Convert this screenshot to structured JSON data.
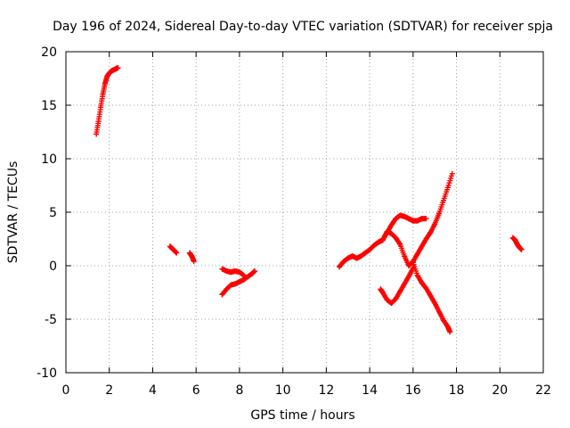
{
  "chart_data": {
    "type": "scatter",
    "title": "Day 196 of 2024, Sidereal Day-to-day VTEC variation (SDTVAR) for receiver spja",
    "xlabel": "GPS time / hours",
    "ylabel": "SDTVAR / TECUs",
    "xlim": [
      0,
      22
    ],
    "ylim": [
      -10,
      20
    ],
    "xticks": [
      0,
      2,
      4,
      6,
      8,
      10,
      12,
      14,
      16,
      18,
      20,
      22
    ],
    "yticks": [
      -10,
      -5,
      0,
      5,
      10,
      15,
      20
    ],
    "grid": true,
    "marker": "+",
    "color": "#ff0000",
    "series": [
      {
        "x": [
          1.4,
          1.5,
          1.6,
          1.7,
          1.8,
          1.9,
          2.0,
          2.1,
          2.2,
          2.3,
          2.4
        ],
        "y": [
          12.3,
          13.5,
          14.8,
          16.0,
          17.0,
          17.7,
          18.0,
          18.2,
          18.3,
          18.4,
          18.5
        ]
      },
      {
        "x": [
          4.8,
          4.9,
          5.0,
          5.1
        ],
        "y": [
          1.8,
          1.6,
          1.4,
          1.2
        ]
      },
      {
        "x": [
          5.7,
          5.8,
          5.9
        ],
        "y": [
          1.2,
          0.9,
          0.4
        ]
      },
      {
        "x": [
          7.2,
          7.4,
          7.6,
          7.8,
          8.0,
          8.2
        ],
        "y": [
          -0.3,
          -0.5,
          -0.6,
          -0.5,
          -0.6,
          -0.9
        ]
      },
      {
        "x": [
          7.2,
          7.4,
          7.6,
          7.8,
          8.0,
          8.2,
          8.4,
          8.6,
          8.7
        ],
        "y": [
          -2.7,
          -2.2,
          -1.8,
          -1.7,
          -1.5,
          -1.3,
          -1.0,
          -0.7,
          -0.5
        ]
      },
      {
        "x": [
          12.6,
          12.8,
          13.0,
          13.2,
          13.4,
          13.6,
          13.8,
          14.0,
          14.2,
          14.4,
          14.6,
          14.8,
          15.0,
          15.2,
          15.4,
          15.6,
          15.8,
          16.0,
          16.2,
          16.4,
          16.6
        ],
        "y": [
          -0.1,
          0.4,
          0.7,
          0.9,
          0.7,
          0.9,
          1.2,
          1.5,
          1.9,
          2.2,
          2.4,
          3.1,
          3.8,
          4.4,
          4.7,
          4.6,
          4.4,
          4.2,
          4.2,
          4.4,
          4.4
        ]
      },
      {
        "x": [
          14.4,
          14.6,
          14.8,
          15.0,
          15.2,
          15.4,
          15.6,
          15.8,
          16.0,
          16.2,
          16.4,
          16.6,
          16.8,
          17.0,
          17.2,
          17.4,
          17.6,
          17.8
        ],
        "y": [
          2.2,
          2.4,
          3.2,
          3.0,
          2.6,
          2.0,
          0.9,
          0.0,
          0.4,
          1.1,
          1.8,
          2.5,
          3.1,
          3.9,
          4.9,
          6.1,
          7.3,
          8.6
        ]
      },
      {
        "x": [
          16.0,
          16.2,
          16.4,
          16.6,
          16.8,
          17.0,
          17.2,
          17.4,
          17.6,
          17.7
        ],
        "y": [
          0.3,
          -0.9,
          -1.6,
          -2.1,
          -2.8,
          -3.5,
          -4.3,
          -5.1,
          -5.7,
          -6.2
        ]
      },
      {
        "x": [
          14.5,
          14.6,
          14.8,
          15.0,
          15.2,
          15.4,
          15.6,
          15.8,
          16.0
        ],
        "y": [
          -2.2,
          -2.5,
          -3.2,
          -3.5,
          -3.1,
          -2.4,
          -1.7,
          -1.0,
          -0.2
        ]
      },
      {
        "x": [
          20.6,
          20.7,
          20.8,
          20.9,
          21.0
        ],
        "y": [
          2.6,
          2.4,
          2.0,
          1.7,
          1.5
        ]
      }
    ]
  }
}
